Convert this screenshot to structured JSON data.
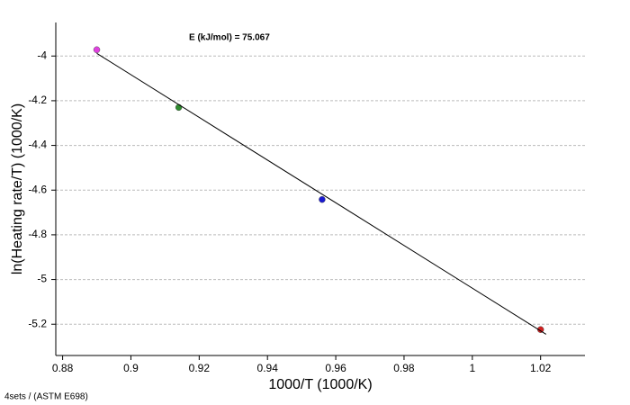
{
  "chart_data": {
    "type": "scatter",
    "annotation": "E (kJ/mol) = 75.067",
    "x_label": "1000/T (1000/K)",
    "y_label": "ln(Heating rate/T) (1000/K)",
    "footer": "4sets / (ASTM E698)",
    "series": [
      {
        "x": [
          0.89,
          0.914,
          0.956,
          1.02
        ],
        "values": [
          -3.972,
          -4.23,
          -4.642,
          -5.224
        ],
        "colors": [
          "#e040e0",
          "#2e8b2e",
          "#1a1ad0",
          "#d02020"
        ]
      },
      {
        "kind": "line",
        "x": [
          0.89,
          1.0216
        ],
        "values": [
          -3.988,
          -5.245
        ],
        "color": "#000000"
      }
    ],
    "xlim": [
      0.878,
      1.033
    ],
    "xticks": [
      0.88,
      0.9,
      0.92,
      0.94,
      0.96,
      0.98,
      1,
      1.02
    ],
    "ylim": [
      -5.34,
      -3.85
    ],
    "yticks": [
      -4,
      -4.2,
      -4.4,
      -4.6,
      -4.8,
      -5,
      -5.2
    ],
    "grid": true
  }
}
